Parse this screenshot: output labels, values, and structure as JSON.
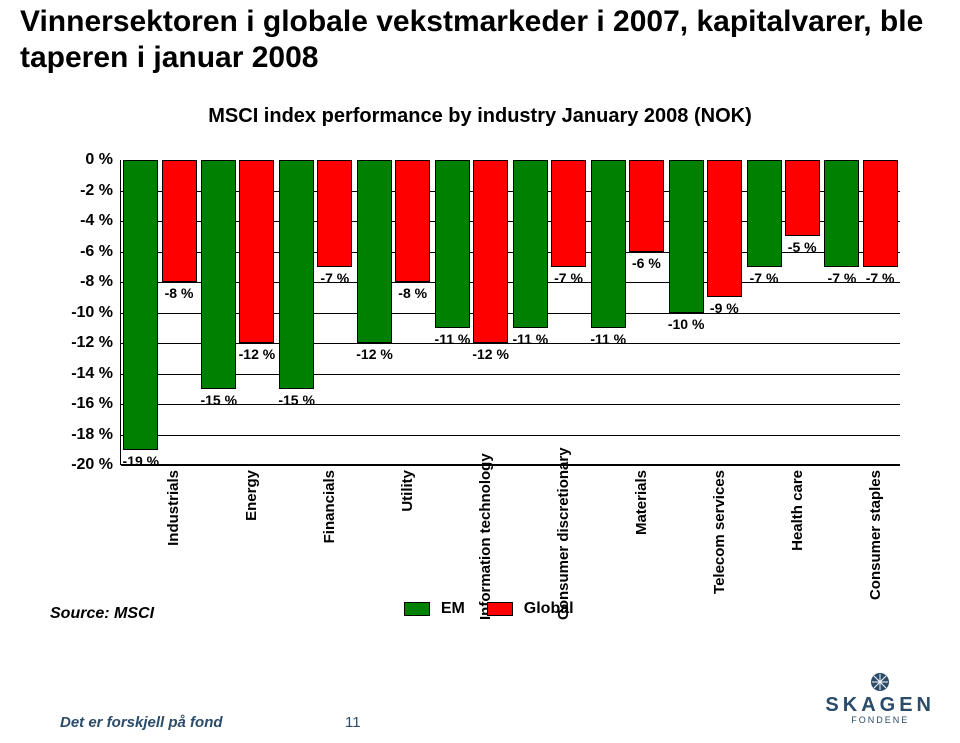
{
  "title": "Vinnersektoren i globale vekstmarkeder i 2007, kapitalvarer, ble taperen i januar 2008",
  "subtitle": "MSCI index performance by industry January 2008 (NOK)",
  "source": "Source: MSCI",
  "footer": "Det er forskjell på fond",
  "page_number": "11",
  "logo": {
    "brand": "SKAGEN",
    "sub": "FONDENE"
  },
  "legend": {
    "em": "EM",
    "global": "Global"
  },
  "chart": {
    "type": "bar",
    "ylim": [
      -20,
      0
    ],
    "ytick_step": 2,
    "yticks": [
      "0 %",
      "-2 %",
      "-4 %",
      "-6 %",
      "-8 %",
      "-10 %",
      "-12 %",
      "-14 %",
      "-16 %",
      "-18 %",
      "-20 %"
    ],
    "colors": {
      "em": "#008000",
      "global": "#ff0000",
      "grid": "#000000",
      "background": "#ffffff",
      "text": "#000000"
    },
    "bar_width_pct": 45,
    "label_fontsize": 14,
    "tick_fontsize": 16,
    "categories": [
      {
        "label": "Industrials",
        "em": -19,
        "global": -8,
        "em_label": "-19 %",
        "global_label": "-8 %"
      },
      {
        "label": "Energy",
        "em": -15,
        "global": -12,
        "em_label": "-15 %",
        "global_label": "-12 %"
      },
      {
        "label": "Financials",
        "em": -15,
        "global": -7,
        "em_label": "-15 %",
        "global_label": "-7 %"
      },
      {
        "label": "Utility",
        "em": -12,
        "global": -8,
        "em_label": "-12 %",
        "global_label": "-8 %"
      },
      {
        "label": "Information technology",
        "em": -11,
        "global": -12,
        "em_label": "-11 %",
        "global_label": "-12 %"
      },
      {
        "label": "Consumer discretionary",
        "em": -11,
        "global": -7,
        "em_label": "-11 %",
        "global_label": "-7 %"
      },
      {
        "label": "Materials",
        "em": -11,
        "global": -6,
        "em_label": "-11 %",
        "global_label": "-6 %"
      },
      {
        "label": "Telecom services",
        "em": -10,
        "global": -9,
        "em_label": "-10 %",
        "global_label": "-9 %"
      },
      {
        "label": "Health care",
        "em": -7,
        "global": -5,
        "em_label": "-7 %",
        "global_label": "-5 %"
      },
      {
        "label": "Consumer staples",
        "em": -7,
        "global": -7,
        "em_label": "-7 %",
        "global_label": "-7 %"
      }
    ]
  }
}
